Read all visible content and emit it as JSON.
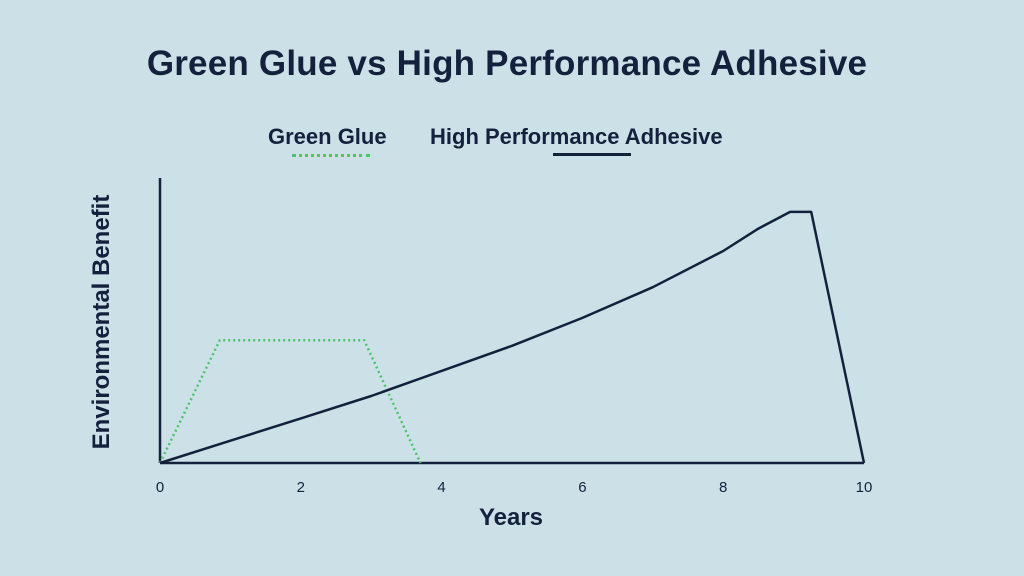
{
  "colors": {
    "background": "#cce0e8",
    "text": "#14213d",
    "green_glue": "#4cc56a",
    "high_performance": "#14213d"
  },
  "chart_data": {
    "type": "line",
    "title": "Green Glue vs High Performance Adhesive",
    "xlabel": "Years",
    "ylabel": "Environmental Benefit",
    "xlim": [
      0,
      10
    ],
    "ylim": [
      0,
      10
    ],
    "xticks": [
      0,
      2,
      4,
      6,
      8,
      10
    ],
    "grid": false,
    "legend_position": "top-center",
    "series": [
      {
        "name": "Green Glue",
        "style": "dotted",
        "color": "#4cc56a",
        "points": [
          [
            0,
            0
          ],
          [
            0.85,
            4.4
          ],
          [
            2.9,
            4.4
          ],
          [
            3.7,
            0
          ]
        ]
      },
      {
        "name": "High Performance Adhesive",
        "style": "solid",
        "color": "#14213d",
        "points": [
          [
            0,
            0
          ],
          [
            1,
            0.8
          ],
          [
            2,
            1.6
          ],
          [
            3,
            2.4
          ],
          [
            4,
            3.3
          ],
          [
            5,
            4.2
          ],
          [
            6,
            5.2
          ],
          [
            7,
            6.3
          ],
          [
            8,
            7.6
          ],
          [
            8.5,
            8.4
          ],
          [
            8.95,
            9.0
          ],
          [
            9.25,
            9.0
          ],
          [
            10,
            0
          ]
        ]
      }
    ]
  }
}
